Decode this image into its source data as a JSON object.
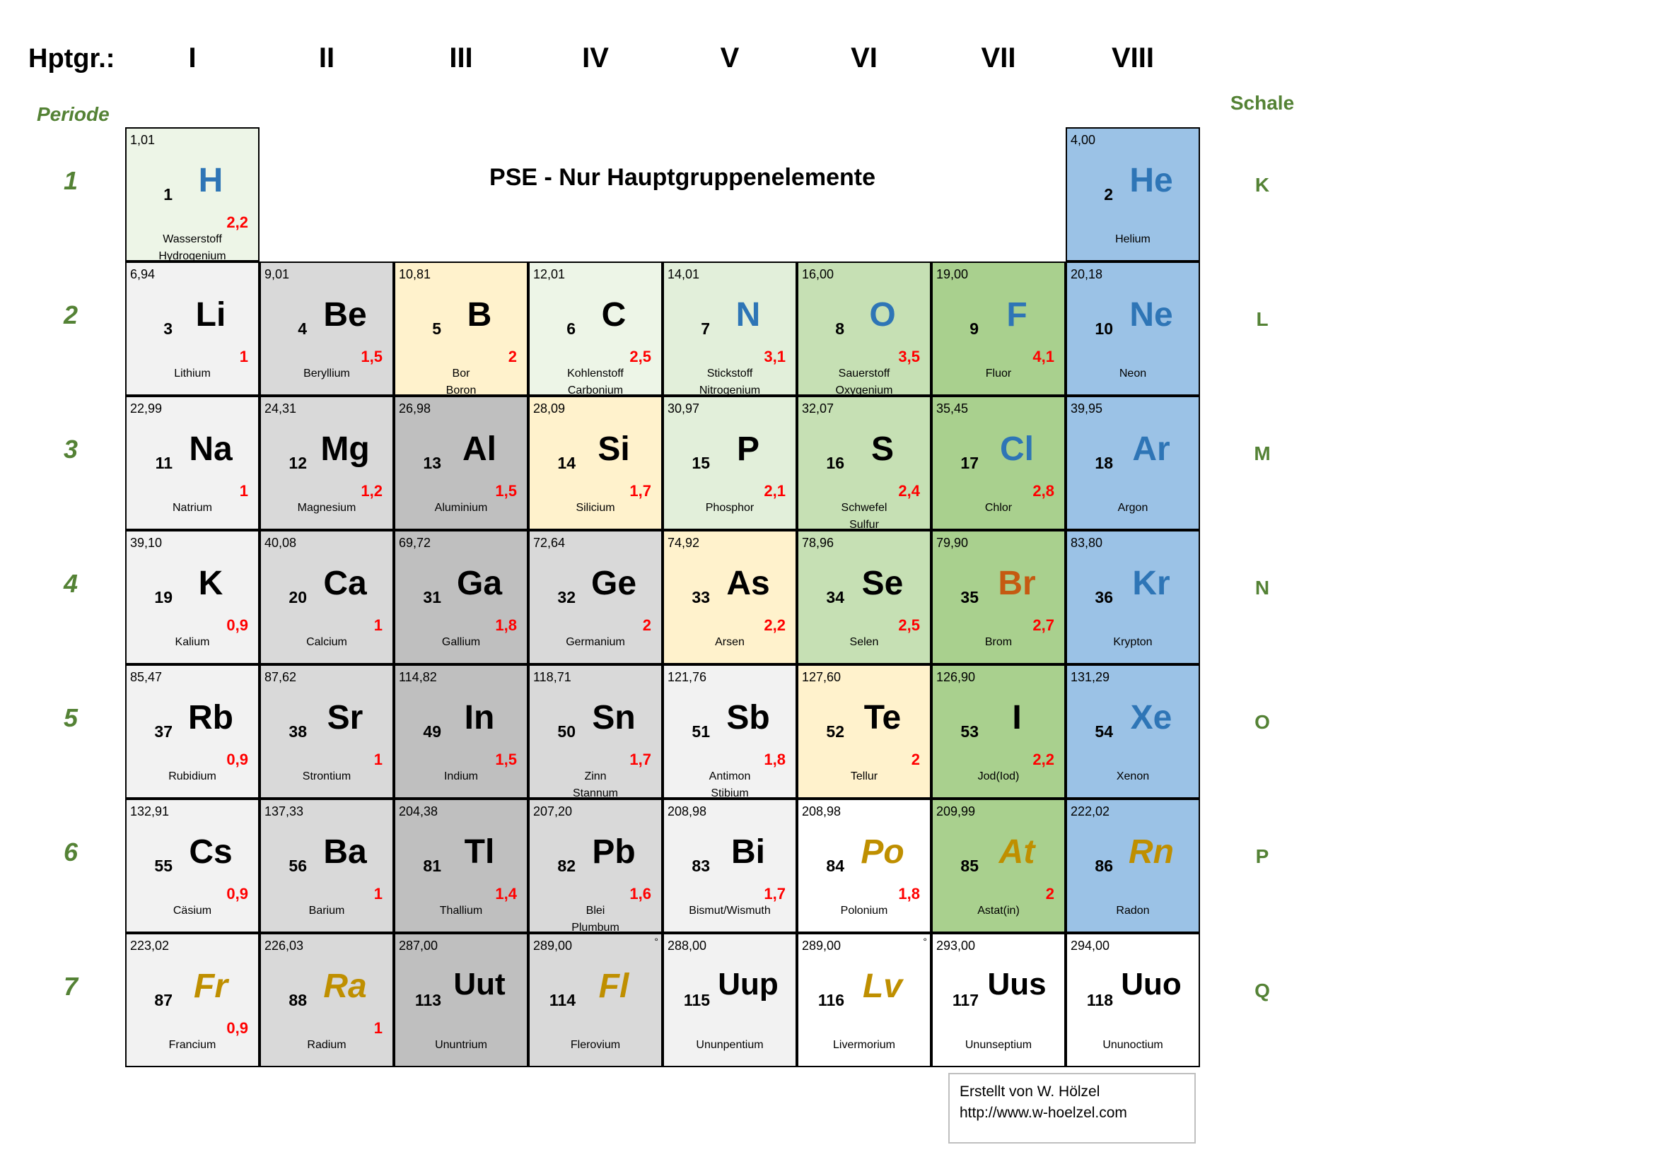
{
  "header": {
    "hauptgruppe_label": "Hptgr.:",
    "groups": [
      "I",
      "II",
      "III",
      "IV",
      "V",
      "VI",
      "VII",
      "VIII"
    ],
    "periode_label": "Periode",
    "schale_label": "Schale",
    "periods": [
      "1",
      "2",
      "3",
      "4",
      "5",
      "6",
      "7"
    ],
    "shells": [
      "K",
      "L",
      "M",
      "N",
      "O",
      "P",
      "Q"
    ]
  },
  "title": "PSE - Nur Hauptgruppenelemente",
  "colors": {
    "label_green": "#548235",
    "electronegativity_red": "#ff0000",
    "symbol_blue": "#2e75b6",
    "symbol_orange": "#c55a11",
    "symbol_gold": "#bf8f00"
  },
  "elements": [
    {
      "group": 1,
      "period": 1,
      "num": "1",
      "sym": "H",
      "mass": "1,01",
      "en": "2,2",
      "names": [
        "Wasserstoff",
        "Hydrogenium"
      ],
      "bg": "hgreen",
      "sc": "blue"
    },
    {
      "group": 8,
      "period": 1,
      "num": "2",
      "sym": "He",
      "mass": "4,00",
      "en": "",
      "names": [
        "Helium"
      ],
      "bg": "blue",
      "sc": "blue"
    },
    {
      "group": 1,
      "period": 2,
      "num": "3",
      "sym": "Li",
      "mass": "6,94",
      "en": "1",
      "names": [
        "Lithium"
      ],
      "bg": "lightgray",
      "sc": "black"
    },
    {
      "group": 2,
      "period": 2,
      "num": "4",
      "sym": "Be",
      "mass": "9,01",
      "en": "1,5",
      "names": [
        "Beryllium"
      ],
      "bg": "gray",
      "sc": "black"
    },
    {
      "group": 3,
      "period": 2,
      "num": "5",
      "sym": "B",
      "mass": "10,81",
      "en": "2",
      "names": [
        "Bor",
        "Boron"
      ],
      "bg": "cream",
      "sc": "black"
    },
    {
      "group": 4,
      "period": 2,
      "num": "6",
      "sym": "C",
      "mass": "12,01",
      "en": "2,5",
      "names": [
        "Kohlenstoff",
        "Carbonium"
      ],
      "bg": "hgreen",
      "sc": "black"
    },
    {
      "group": 5,
      "period": 2,
      "num": "7",
      "sym": "N",
      "mass": "14,01",
      "en": "3,1",
      "names": [
        "Stickstoff",
        "Nitrogenium"
      ],
      "bg": "lightgreen",
      "sc": "blue"
    },
    {
      "group": 6,
      "period": 2,
      "num": "8",
      "sym": "O",
      "mass": "16,00",
      "en": "3,5",
      "names": [
        "Sauerstoff",
        "Oxygenium"
      ],
      "bg": "midgreen",
      "sc": "blue"
    },
    {
      "group": 7,
      "period": 2,
      "num": "9",
      "sym": "F",
      "mass": "19,00",
      "en": "4,1",
      "names": [
        "Fluor"
      ],
      "bg": "green",
      "sc": "blue"
    },
    {
      "group": 8,
      "period": 2,
      "num": "10",
      "sym": "Ne",
      "mass": "20,18",
      "en": "",
      "names": [
        "Neon"
      ],
      "bg": "blue",
      "sc": "blue"
    },
    {
      "group": 1,
      "period": 3,
      "num": "11",
      "sym": "Na",
      "mass": "22,99",
      "en": "1",
      "names": [
        "Natrium"
      ],
      "bg": "lightgray",
      "sc": "black"
    },
    {
      "group": 2,
      "period": 3,
      "num": "12",
      "sym": "Mg",
      "mass": "24,31",
      "en": "1,2",
      "names": [
        "Magnesium"
      ],
      "bg": "gray",
      "sc": "black"
    },
    {
      "group": 3,
      "period": 3,
      "num": "13",
      "sym": "Al",
      "mass": "26,98",
      "en": "1,5",
      "names": [
        "Aluminium"
      ],
      "bg": "darkgray",
      "sc": "black"
    },
    {
      "group": 4,
      "period": 3,
      "num": "14",
      "sym": "Si",
      "mass": "28,09",
      "en": "1,7",
      "names": [
        "Silicium"
      ],
      "bg": "cream",
      "sc": "black"
    },
    {
      "group": 5,
      "period": 3,
      "num": "15",
      "sym": "P",
      "mass": "30,97",
      "en": "2,1",
      "names": [
        "Phosphor"
      ],
      "bg": "lightgreen",
      "sc": "black"
    },
    {
      "group": 6,
      "period": 3,
      "num": "16",
      "sym": "S",
      "mass": "32,07",
      "en": "2,4",
      "names": [
        "Schwefel",
        "Sulfur"
      ],
      "bg": "midgreen",
      "sc": "black"
    },
    {
      "group": 7,
      "period": 3,
      "num": "17",
      "sym": "Cl",
      "mass": "35,45",
      "en": "2,8",
      "names": [
        "Chlor"
      ],
      "bg": "green",
      "sc": "blue"
    },
    {
      "group": 8,
      "period": 3,
      "num": "18",
      "sym": "Ar",
      "mass": "39,95",
      "en": "",
      "names": [
        "Argon"
      ],
      "bg": "blue",
      "sc": "blue"
    },
    {
      "group": 1,
      "period": 4,
      "num": "19",
      "sym": "K",
      "mass": "39,10",
      "en": "0,9",
      "names": [
        "Kalium"
      ],
      "bg": "lightgray",
      "sc": "black"
    },
    {
      "group": 2,
      "period": 4,
      "num": "20",
      "sym": "Ca",
      "mass": "40,08",
      "en": "1",
      "names": [
        "Calcium"
      ],
      "bg": "gray",
      "sc": "black"
    },
    {
      "group": 3,
      "period": 4,
      "num": "31",
      "sym": "Ga",
      "mass": "69,72",
      "en": "1,8",
      "names": [
        "Gallium"
      ],
      "bg": "darkgray",
      "sc": "black"
    },
    {
      "group": 4,
      "period": 4,
      "num": "32",
      "sym": "Ge",
      "mass": "72,64",
      "en": "2",
      "names": [
        "Germanium"
      ],
      "bg": "gray",
      "sc": "black"
    },
    {
      "group": 5,
      "period": 4,
      "num": "33",
      "sym": "As",
      "mass": "74,92",
      "en": "2,2",
      "names": [
        "Arsen"
      ],
      "bg": "cream",
      "sc": "black"
    },
    {
      "group": 6,
      "period": 4,
      "num": "34",
      "sym": "Se",
      "mass": "78,96",
      "en": "2,5",
      "names": [
        "Selen"
      ],
      "bg": "midgreen",
      "sc": "black"
    },
    {
      "group": 7,
      "period": 4,
      "num": "35",
      "sym": "Br",
      "mass": "79,90",
      "en": "2,7",
      "names": [
        "Brom"
      ],
      "bg": "green",
      "sc": "orange"
    },
    {
      "group": 8,
      "period": 4,
      "num": "36",
      "sym": "Kr",
      "mass": "83,80",
      "en": "",
      "names": [
        "Krypton"
      ],
      "bg": "blue",
      "sc": "blue"
    },
    {
      "group": 1,
      "period": 5,
      "num": "37",
      "sym": "Rb",
      "mass": "85,47",
      "en": "0,9",
      "names": [
        "Rubidium"
      ],
      "bg": "lightgray",
      "sc": "black"
    },
    {
      "group": 2,
      "period": 5,
      "num": "38",
      "sym": "Sr",
      "mass": "87,62",
      "en": "1",
      "names": [
        "Strontium"
      ],
      "bg": "gray",
      "sc": "black"
    },
    {
      "group": 3,
      "period": 5,
      "num": "49",
      "sym": "In",
      "mass": "114,82",
      "en": "1,5",
      "names": [
        "Indium"
      ],
      "bg": "darkgray",
      "sc": "black"
    },
    {
      "group": 4,
      "period": 5,
      "num": "50",
      "sym": "Sn",
      "mass": "118,71",
      "en": "1,7",
      "names": [
        "Zinn",
        "Stannum"
      ],
      "bg": "gray",
      "sc": "black"
    },
    {
      "group": 5,
      "period": 5,
      "num": "51",
      "sym": "Sb",
      "mass": "121,76",
      "en": "1,8",
      "names": [
        "Antimon",
        "Stibium"
      ],
      "bg": "lightgray",
      "sc": "black"
    },
    {
      "group": 6,
      "period": 5,
      "num": "52",
      "sym": "Te",
      "mass": "127,60",
      "en": "2",
      "names": [
        "Tellur"
      ],
      "bg": "cream",
      "sc": "black"
    },
    {
      "group": 7,
      "period": 5,
      "num": "53",
      "sym": "I",
      "mass": "126,90",
      "en": "2,2",
      "names": [
        "Jod(Iod)"
      ],
      "bg": "green",
      "sc": "black"
    },
    {
      "group": 8,
      "period": 5,
      "num": "54",
      "sym": "Xe",
      "mass": "131,29",
      "en": "",
      "names": [
        "Xenon"
      ],
      "bg": "blue",
      "sc": "blue"
    },
    {
      "group": 1,
      "period": 6,
      "num": "55",
      "sym": "Cs",
      "mass": "132,91",
      "en": "0,9",
      "names": [
        "Cäsium"
      ],
      "bg": "lightgray",
      "sc": "black"
    },
    {
      "group": 2,
      "period": 6,
      "num": "56",
      "sym": "Ba",
      "mass": "137,33",
      "en": "1",
      "names": [
        "Barium"
      ],
      "bg": "gray",
      "sc": "black"
    },
    {
      "group": 3,
      "period": 6,
      "num": "81",
      "sym": "Tl",
      "mass": "204,38",
      "en": "1,4",
      "names": [
        "Thallium"
      ],
      "bg": "darkgray",
      "sc": "black"
    },
    {
      "group": 4,
      "period": 6,
      "num": "82",
      "sym": "Pb",
      "mass": "207,20",
      "en": "1,6",
      "names": [
        "Blei",
        "Plumbum"
      ],
      "bg": "gray",
      "sc": "black"
    },
    {
      "group": 5,
      "period": 6,
      "num": "83",
      "sym": "Bi",
      "mass": "208,98",
      "en": "1,7",
      "names": [
        "Bismut/Wismuth"
      ],
      "bg": "lightgray",
      "sc": "black"
    },
    {
      "group": 6,
      "period": 6,
      "num": "84",
      "sym": "Po",
      "mass": "208,98",
      "en": "1,8",
      "names": [
        "Polonium"
      ],
      "bg": "white",
      "sc": "gold"
    },
    {
      "group": 7,
      "period": 6,
      "num": "85",
      "sym": "At",
      "mass": "209,99",
      "en": "2",
      "names": [
        "Astat(in)"
      ],
      "bg": "green",
      "sc": "gold"
    },
    {
      "group": 8,
      "period": 6,
      "num": "86",
      "sym": "Rn",
      "mass": "222,02",
      "en": "",
      "names": [
        "Radon"
      ],
      "bg": "blue",
      "sc": "gold"
    },
    {
      "group": 1,
      "period": 7,
      "num": "87",
      "sym": "Fr",
      "mass": "223,02",
      "en": "0,9",
      "names": [
        "Francium"
      ],
      "bg": "lightgray",
      "sc": "gold"
    },
    {
      "group": 2,
      "period": 7,
      "num": "88",
      "sym": "Ra",
      "mass": "226,03",
      "en": "1",
      "names": [
        "Radium"
      ],
      "bg": "gray",
      "sc": "gold"
    },
    {
      "group": 3,
      "period": 7,
      "num": "113",
      "sym": "Uut",
      "mass": "287,00",
      "en": "",
      "names": [
        "Ununtrium"
      ],
      "bg": "darkgray",
      "sc": "black"
    },
    {
      "group": 4,
      "period": 7,
      "num": "114",
      "sym": "Fl",
      "mass": "289,00",
      "en": "",
      "names": [
        "Flerovium"
      ],
      "bg": "gray",
      "sc": "gold",
      "mark": "°"
    },
    {
      "group": 5,
      "period": 7,
      "num": "115",
      "sym": "Uup",
      "mass": "288,00",
      "en": "",
      "names": [
        "Ununpentium"
      ],
      "bg": "lightgray",
      "sc": "black"
    },
    {
      "group": 6,
      "period": 7,
      "num": "116",
      "sym": "Lv",
      "mass": "289,00",
      "en": "",
      "names": [
        "Livermorium"
      ],
      "bg": "white",
      "sc": "gold",
      "mark": "°"
    },
    {
      "group": 7,
      "period": 7,
      "num": "117",
      "sym": "Uus",
      "mass": "293,00",
      "en": "",
      "names": [
        "Ununseptium"
      ],
      "bg": "white",
      "sc": "black"
    },
    {
      "group": 8,
      "period": 7,
      "num": "118",
      "sym": "Uuo",
      "mass": "294,00",
      "en": "",
      "names": [
        "Ununoctium"
      ],
      "bg": "white",
      "sc": "black"
    }
  ],
  "credit": {
    "line1": "Erstellt von W. Hölzel",
    "line2": "http://www.w-hoelzel.com"
  }
}
